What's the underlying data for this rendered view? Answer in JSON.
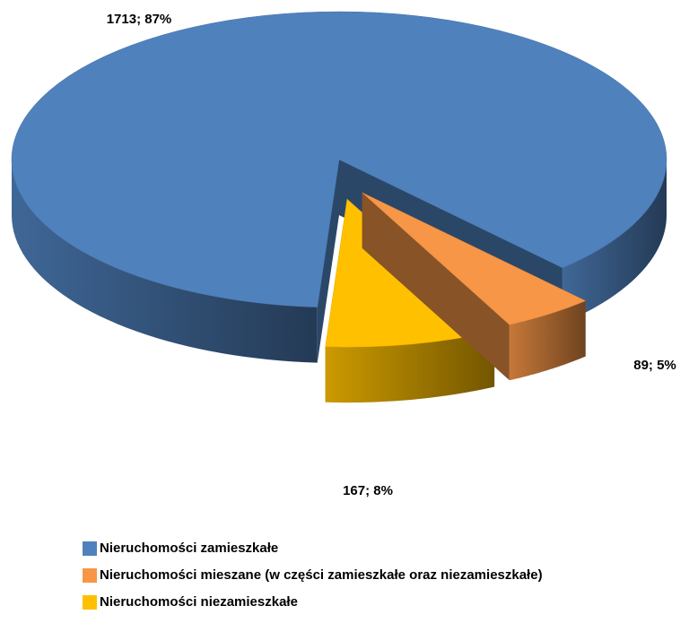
{
  "chart_data": {
    "type": "pie",
    "categories": [
      "Nieruchomości zamieszkałe",
      "Nieruchomości mieszane (w części zamieszkałe oraz niezamieszkałe)",
      "Nieruchomości niezamieszkałe"
    ],
    "values": [
      1713,
      89,
      167
    ],
    "value_labels": [
      "1713; 87%",
      "89; 5%",
      "167; 8%"
    ],
    "colors": [
      "#4f81bd",
      "#f79646",
      "#ffc000"
    ],
    "legend": "bottom"
  }
}
